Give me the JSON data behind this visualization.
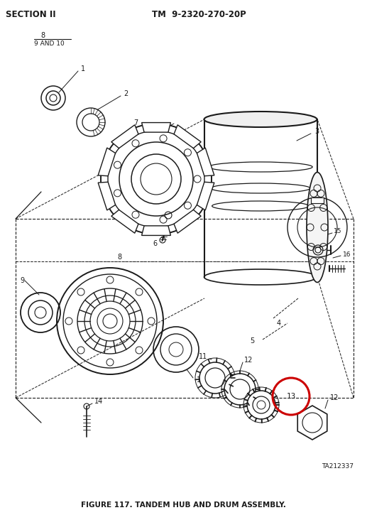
{
  "title_left": "SECTION II",
  "title_right": "TM  9-2320-270-20P",
  "figure_caption": "FIGURE 117. TANDEM HUB AND DRUM ASSEMBLY.",
  "ref_code": "TA212337",
  "bg_color": "#ffffff",
  "line_color": "#1a1a1a",
  "highlight_circle_color": "#cc0000",
  "fig_w": 5.17,
  "fig_h": 7.25,
  "dpi": 100
}
